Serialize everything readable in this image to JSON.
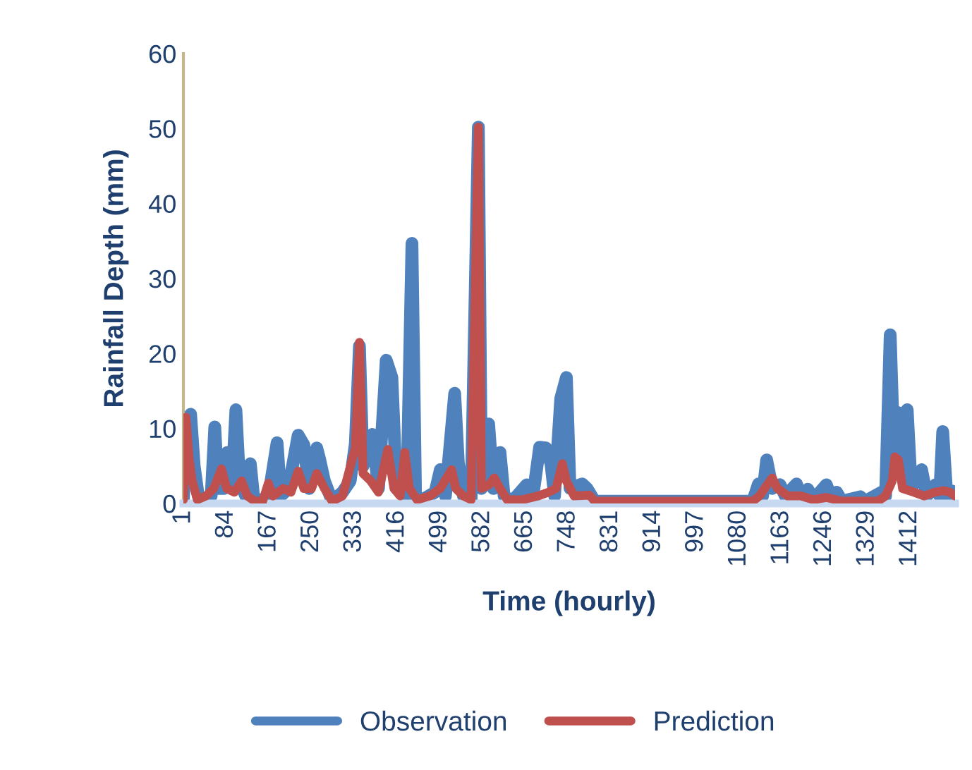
{
  "chart_data": {
    "type": "line",
    "xlabel": "Time (hourly)",
    "ylabel": "Rainfall Depth (mm)",
    "xlim": [
      1,
      1500
    ],
    "xticks": [
      1,
      84,
      167,
      250,
      333,
      416,
      499,
      582,
      665,
      748,
      831,
      914,
      997,
      1080,
      1163,
      1246,
      1329,
      1412
    ],
    "ylim": [
      0,
      60
    ],
    "yticks": [
      0,
      10,
      20,
      30,
      40,
      50,
      60
    ],
    "grid": false,
    "legend": "bottom",
    "marker": "none",
    "line_style": "solid",
    "series": [
      {
        "name": "Observation",
        "color": "#4f81bd",
        "x": [
          1,
          6,
          15,
          22,
          30,
          40,
          55,
          62,
          68,
          80,
          86,
          95,
          103,
          110,
          122,
          131,
          138,
          160,
          170,
          183,
          190,
          205,
          224,
          235,
          245,
          260,
          266,
          275,
          290,
          310,
          325,
          335,
          343,
          350,
          368,
          380,
          395,
          406,
          415,
          435,
          445,
          452,
          465,
          490,
          500,
          510,
          528,
          535,
          545,
          560,
          574,
          580,
          594,
          603,
          616,
          624,
          640,
          668,
          680,
          693,
          705,
          715,
          722,
          734,
          745,
          752,
          776,
          785,
          800,
          1107,
          1118,
          1126,
          1134,
          1145,
          1160,
          1170,
          1192,
          1200,
          1214,
          1225,
          1250,
          1258,
          1270,
          1280,
          1316,
          1325,
          1357,
          1365,
          1374,
          1382,
          1390,
          1398,
          1407,
          1415,
          1435,
          1445,
          1462,
          1470,
          1476,
          1484,
          1493,
          1500
        ],
        "values": [
          0.5,
          8,
          11.9,
          5,
          1,
          0.5,
          1,
          10.2,
          2,
          2,
          6.8,
          2,
          12.5,
          3,
          1,
          5.3,
          0.5,
          0.5,
          2.5,
          8.1,
          1,
          2,
          9.1,
          7.8,
          2,
          7.4,
          5.8,
          3,
          0.3,
          1.5,
          3,
          8,
          21,
          5,
          9.2,
          2,
          19.1,
          16.8,
          2,
          1,
          34.7,
          1,
          0.5,
          1.5,
          4.5,
          1,
          14.7,
          5.5,
          1,
          0.5,
          50.2,
          2,
          10.6,
          2,
          6.8,
          1,
          0.3,
          2.5,
          1,
          7.5,
          7.4,
          5.3,
          1,
          14,
          16.8,
          2,
          2.6,
          2,
          0.3,
          0.3,
          2.6,
          1,
          5.8,
          2,
          2.5,
          1,
          2.6,
          1,
          1.9,
          0.5,
          2.5,
          1,
          1.5,
          0.3,
          0.9,
          0.3,
          1.5,
          1,
          22.5,
          5,
          12.1,
          5,
          12.5,
          2,
          4.5,
          1,
          2.5,
          1,
          9.6,
          1,
          1.7,
          1
        ]
      },
      {
        "name": "Prediction",
        "color": "#c0504d",
        "x": [
          1,
          6,
          12,
          18,
          28,
          45,
          60,
          75,
          85,
          100,
          114,
          125,
          140,
          155,
          166,
          175,
          195,
          210,
          224,
          235,
          250,
          260,
          275,
          290,
          310,
          335,
          343,
          350,
          365,
          380,
          398,
          410,
          422,
          431,
          440,
          455,
          480,
          500,
          522,
          530,
          545,
          560,
          574,
          580,
          595,
          605,
          616,
          630,
          660,
          690,
          710,
          725,
          737,
          745,
          760,
          790,
          800,
          1107,
          1120,
          1135,
          1145,
          1155,
          1175,
          1200,
          1225,
          1250,
          1280,
          1350,
          1365,
          1378,
          1383,
          1390,
          1398,
          1420,
          1440,
          1460,
          1478,
          1490,
          1500
        ],
        "values": [
          0.5,
          11.5,
          6,
          3,
          0.5,
          1,
          2,
          4.6,
          2,
          1.5,
          3,
          1,
          0.3,
          0.3,
          2.7,
          1,
          2,
          1.5,
          4.3,
          2,
          2,
          4,
          2,
          0.3,
          1,
          7.4,
          21.5,
          4,
          3,
          1.5,
          7.2,
          2,
          1,
          6.8,
          2,
          0.5,
          1,
          2,
          4.5,
          2,
          1,
          0.5,
          50.2,
          2,
          2.5,
          3.4,
          2,
          0.5,
          0.5,
          1,
          1.5,
          2,
          5.3,
          3,
          1,
          1.1,
          0.3,
          0.3,
          1,
          2.5,
          3.4,
          2,
          1,
          1,
          0.5,
          0.8,
          0.3,
          0.3,
          1,
          3,
          6.2,
          5.8,
          2,
          1.5,
          1,
          1.5,
          1.7,
          1.5,
          1
        ]
      }
    ]
  }
}
